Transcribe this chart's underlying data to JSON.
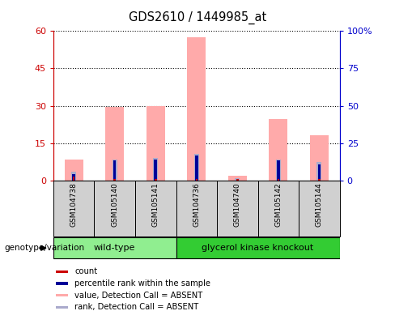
{
  "title": "GDS2610 / 1449985_at",
  "samples": [
    "GSM104738",
    "GSM105140",
    "GSM105141",
    "GSM104736",
    "GSM104740",
    "GSM105142",
    "GSM105144"
  ],
  "groups": {
    "wild-type": [
      0,
      1,
      2
    ],
    "glycerol kinase knockout": [
      3,
      4,
      5,
      6
    ]
  },
  "pink_bars": [
    8.5,
    29.5,
    30.0,
    57.5,
    2.0,
    24.5,
    18.0
  ],
  "red_bars": [
    1.5,
    0.5,
    0.5,
    0.5,
    0.5,
    0.5,
    0.5
  ],
  "dark_blue_bars": [
    2.5,
    8.0,
    8.5,
    10.0,
    0.5,
    8.0,
    6.5
  ],
  "light_blue_bars": [
    3.5,
    8.5,
    9.0,
    10.5,
    1.0,
    8.5,
    7.5
  ],
  "ylim_left": [
    0,
    60
  ],
  "ylim_right": [
    0,
    100
  ],
  "yticks_left": [
    0,
    15,
    30,
    45,
    60
  ],
  "ytick_labels_left": [
    "0",
    "15",
    "30",
    "45",
    "60"
  ],
  "yticks_right": [
    0,
    25,
    50,
    75,
    100
  ],
  "ytick_labels_right": [
    "0",
    "25",
    "50",
    "75",
    "100%"
  ],
  "legend_items": [
    {
      "label": "count",
      "color": "#cc0000"
    },
    {
      "label": "percentile rank within the sample",
      "color": "#000099"
    },
    {
      "label": "value, Detection Call = ABSENT",
      "color": "#ffaaaa"
    },
    {
      "label": "rank, Detection Call = ABSENT",
      "color": "#aaaacc"
    }
  ],
  "genotype_label": "genotype/variation",
  "left_yaxis_color": "#cc0000",
  "right_yaxis_color": "#0000cc",
  "sample_box_color": "#d0d0d0",
  "wt_color": "#90EE90",
  "gk_color": "#33CC33"
}
